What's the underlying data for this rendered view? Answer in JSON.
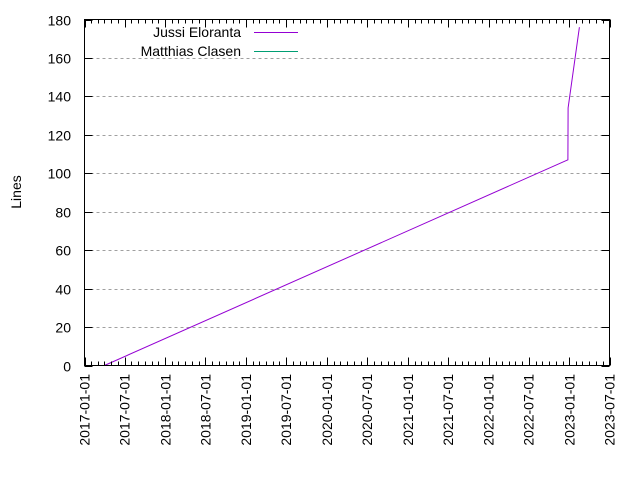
{
  "chart_data": {
    "type": "line",
    "title": "",
    "xlabel": "",
    "ylabel": "Lines",
    "ylim": [
      0,
      180
    ],
    "yticks": [
      0,
      20,
      40,
      60,
      80,
      100,
      120,
      140,
      160,
      180
    ],
    "xlim": [
      "2017-01-01",
      "2023-07-01"
    ],
    "xticks": [
      "2017-01-01",
      "2017-07-01",
      "2018-01-01",
      "2018-07-01",
      "2019-01-01",
      "2019-07-01",
      "2020-01-01",
      "2020-07-01",
      "2021-01-01",
      "2021-07-01",
      "2022-01-01",
      "2022-07-01",
      "2023-01-01",
      "2023-07-01"
    ],
    "grid": {
      "y": true,
      "x": false,
      "style": "dashed",
      "color": "#a0a0a0"
    },
    "legend": {
      "position": "top-left"
    },
    "series": [
      {
        "name": "Jussi Eloranta",
        "color": "#9400d3",
        "points": [
          {
            "x": "2017-04-01",
            "y": 0
          },
          {
            "x": "2022-12-25",
            "y": 107
          },
          {
            "x": "2022-12-26",
            "y": 134
          },
          {
            "x": "2023-02-15",
            "y": 176
          }
        ]
      },
      {
        "name": "Matthias Clasen",
        "color": "#009e73",
        "points": []
      }
    ]
  }
}
